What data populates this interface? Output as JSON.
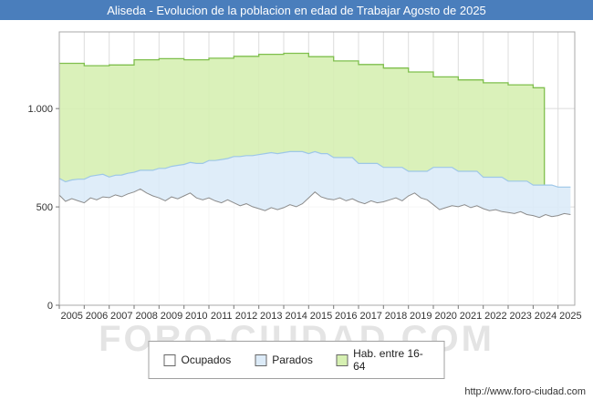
{
  "header": {
    "title": "Aliseda - Evolucion de la poblacion en edad de Trabajar Agosto de 2025",
    "bg": "#4a7ebc"
  },
  "watermark": {
    "text": "FORO-CIUDAD.COM"
  },
  "footer": {
    "url": "http://www.foro-ciudad.com"
  },
  "legend": {
    "items": [
      {
        "label": "Ocupados"
      },
      {
        "label": "Parados"
      },
      {
        "label": "Hab. entre 16-64"
      }
    ]
  },
  "chart_data": {
    "type": "area",
    "title": "Aliseda - Evolucion de la poblacion en edad de Trabajar Agosto de 2025",
    "x0": 2005,
    "x_step": 0.25,
    "x_domain": [
      2005,
      2025.67
    ],
    "ymax": 1390,
    "grid": true,
    "legend_position": "bottom",
    "x_ticks": [
      2005,
      2006,
      2007,
      2008,
      2009,
      2010,
      2011,
      2012,
      2013,
      2014,
      2015,
      2016,
      2017,
      2018,
      2019,
      2020,
      2021,
      2022,
      2023,
      2024,
      2025
    ],
    "y_ticks": [
      {
        "v": 0,
        "label": "0"
      },
      {
        "v": 500,
        "label": "500"
      },
      {
        "v": 1000,
        "label": "1.000"
      }
    ],
    "series": [
      {
        "name": "Ocupados",
        "fill": "#ffffff",
        "stroke": "#8c8c8c",
        "values": [
          560,
          528,
          542,
          531,
          521,
          546,
          536,
          551,
          547,
          561,
          552,
          566,
          576,
          591,
          571,
          556,
          546,
          531,
          551,
          541,
          556,
          571,
          546,
          536,
          546,
          531,
          521,
          536,
          521,
          506,
          516,
          501,
          491,
          481,
          496,
          486,
          496,
          511,
          501,
          516,
          546,
          576,
          551,
          541,
          536,
          546,
          531,
          541,
          526,
          516,
          531,
          521,
          526,
          536,
          546,
          531,
          556,
          571,
          546,
          536,
          511,
          486,
          496,
          506,
          501,
          511,
          496,
          506,
          491,
          481,
          486,
          476,
          471,
          466,
          476,
          461,
          456,
          446,
          461,
          451,
          456,
          466,
          461
        ]
      },
      {
        "name": "Parados",
        "fill": "#dcebf8",
        "stroke": "#9ec7e8",
        "stacked_on": "Ocupados",
        "values": [
          85,
          100,
          95,
          110,
          120,
          110,
          125,
          115,
          105,
          100,
          110,
          105,
          100,
          95,
          115,
          130,
          150,
          165,
          155,
          170,
          160,
          155,
          175,
          185,
          190,
          205,
          220,
          210,
          235,
          250,
          245,
          260,
          275,
          290,
          280,
          285,
          280,
          270,
          280,
          265,
          225,
          205,
          220,
          230,
          215,
          205,
          220,
          210,
          195,
          205,
          190,
          200,
          175,
          165,
          155,
          170,
          125,
          110,
          135,
          145,
          190,
          215,
          205,
          195,
          180,
          170,
          185,
          175,
          160,
          170,
          165,
          175,
          160,
          165,
          155,
          170,
          155,
          165,
          150,
          160,
          145,
          135,
          140
        ]
      },
      {
        "name": "Hab. entre 16-64",
        "type": "step-annual",
        "fill": "#d6f0b2",
        "stroke": "#7fbf4d",
        "start_year": 2005,
        "end_x": 2024.45,
        "values": [
          1230,
          1218,
          1222,
          1248,
          1254,
          1248,
          1256,
          1266,
          1276,
          1281,
          1264,
          1242,
          1224,
          1206,
          1186,
          1161,
          1146,
          1131,
          1121,
          1106
        ]
      }
    ]
  }
}
